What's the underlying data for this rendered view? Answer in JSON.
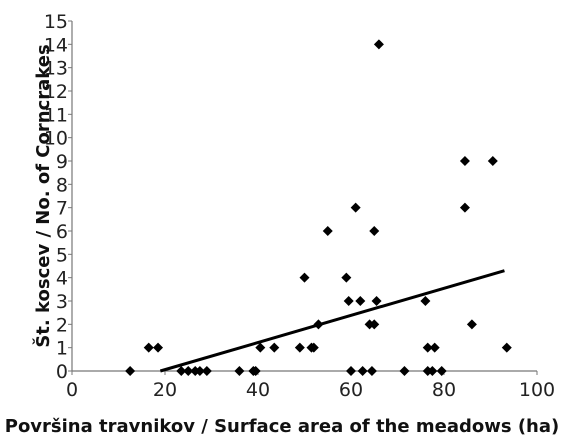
{
  "chart_data": {
    "type": "scatter",
    "xlabel": "Površina travnikov / Surface area of the meadows (ha)",
    "ylabel": "Št. koscev / No. of Corncrakes",
    "xlim": [
      0,
      100
    ],
    "ylim": [
      0,
      15
    ],
    "x_ticks": [
      "0",
      "20",
      "40",
      "60",
      "80",
      "100"
    ],
    "y_ticks": [
      "0",
      "1",
      "2",
      "3",
      "4",
      "5",
      "6",
      "7",
      "8",
      "9",
      "10",
      "11",
      "12",
      "13",
      "14",
      "15"
    ],
    "grid": false,
    "legend": "none",
    "marker": "diamond",
    "marker_color": "#000000",
    "trend_line": {
      "x": [
        19,
        93
      ],
      "y": [
        0,
        4.3
      ]
    },
    "points": [
      {
        "x": 12.5,
        "y": 0
      },
      {
        "x": 16.5,
        "y": 1
      },
      {
        "x": 18.5,
        "y": 1
      },
      {
        "x": 23.5,
        "y": 0
      },
      {
        "x": 25,
        "y": 0
      },
      {
        "x": 26.5,
        "y": 0
      },
      {
        "x": 27.5,
        "y": 0
      },
      {
        "x": 29,
        "y": 0
      },
      {
        "x": 36,
        "y": 0
      },
      {
        "x": 39,
        "y": 0
      },
      {
        "x": 39.5,
        "y": 0
      },
      {
        "x": 40.5,
        "y": 1
      },
      {
        "x": 43.5,
        "y": 1
      },
      {
        "x": 49,
        "y": 1
      },
      {
        "x": 50,
        "y": 4
      },
      {
        "x": 51.5,
        "y": 1
      },
      {
        "x": 52,
        "y": 1
      },
      {
        "x": 53,
        "y": 2
      },
      {
        "x": 55,
        "y": 6
      },
      {
        "x": 59,
        "y": 4
      },
      {
        "x": 59.5,
        "y": 3
      },
      {
        "x": 60,
        "y": 0
      },
      {
        "x": 61,
        "y": 7
      },
      {
        "x": 62,
        "y": 3
      },
      {
        "x": 62.5,
        "y": 0
      },
      {
        "x": 64,
        "y": 2
      },
      {
        "x": 64.5,
        "y": 0
      },
      {
        "x": 65,
        "y": 2
      },
      {
        "x": 65,
        "y": 6
      },
      {
        "x": 65.5,
        "y": 3
      },
      {
        "x": 66,
        "y": 14
      },
      {
        "x": 71.5,
        "y": 0
      },
      {
        "x": 76,
        "y": 3
      },
      {
        "x": 76.5,
        "y": 0
      },
      {
        "x": 76.5,
        "y": 1
      },
      {
        "x": 77.5,
        "y": 0
      },
      {
        "x": 78,
        "y": 1
      },
      {
        "x": 79.5,
        "y": 0
      },
      {
        "x": 84.5,
        "y": 9
      },
      {
        "x": 84.5,
        "y": 7
      },
      {
        "x": 86,
        "y": 2
      },
      {
        "x": 90.5,
        "y": 9
      },
      {
        "x": 93.5,
        "y": 1
      }
    ]
  }
}
